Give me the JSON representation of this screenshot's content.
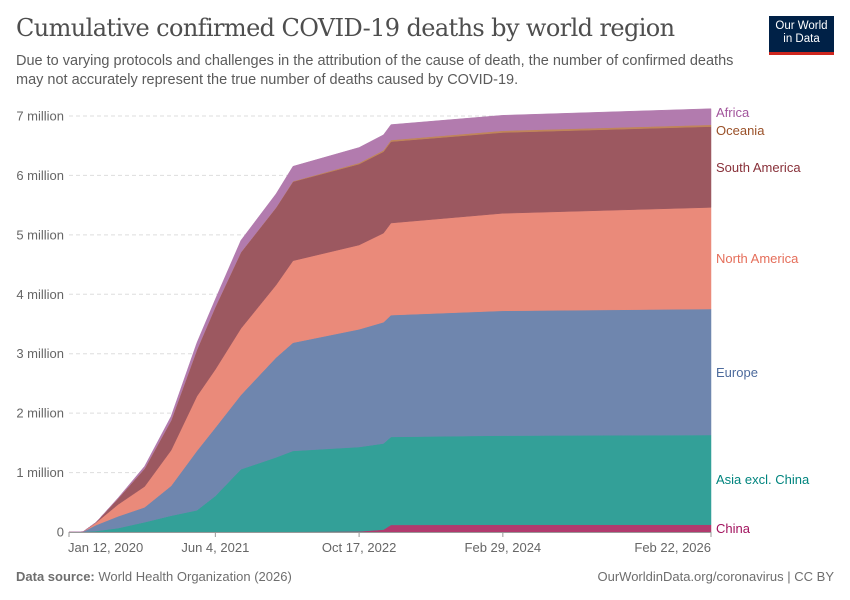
{
  "header": {
    "title": "Cumulative confirmed COVID-19 deaths by world region",
    "subtitle": "Due to varying protocols and challenges in the attribution of the cause of death, the number of confirmed deaths may not accurately represent the true number of deaths caused by COVID-19.",
    "logo_line1": "Our World",
    "logo_line2": "in Data"
  },
  "footer": {
    "source_label": "Data source:",
    "source_value": "World Health Organization (2026)",
    "link": "OurWorldinData.org/coronavirus | CC BY"
  },
  "chart_data": {
    "type": "area",
    "stacked": true,
    "title": "Cumulative confirmed COVID-19 deaths by world region",
    "xlabel": "",
    "ylabel": "",
    "ylim": [
      0,
      7000000
    ],
    "xlim": [
      "2020-01-12",
      "2026-02-22"
    ],
    "grid": "horizontal dashed",
    "legend": "right (inline labels)",
    "y_ticks": [
      {
        "value": 0,
        "label": "0"
      },
      {
        "value": 1000000,
        "label": "1 million"
      },
      {
        "value": 2000000,
        "label": "2 million"
      },
      {
        "value": 3000000,
        "label": "3 million"
      },
      {
        "value": 4000000,
        "label": "4 million"
      },
      {
        "value": 5000000,
        "label": "5 million"
      },
      {
        "value": 6000000,
        "label": "6 million"
      },
      {
        "value": 7000000,
        "label": "7 million"
      }
    ],
    "x_ticks": [
      {
        "value": "2020-01-12",
        "label": "Jan 12, 2020"
      },
      {
        "value": "2021-06-04",
        "label": "Jun 4, 2021"
      },
      {
        "value": "2022-10-17",
        "label": "Oct 17, 2022"
      },
      {
        "value": "2024-02-29",
        "label": "Feb 29, 2024"
      },
      {
        "value": "2026-02-22",
        "label": "Feb 22, 2026"
      }
    ],
    "x": [
      "2020-01-12",
      "2020-03-01",
      "2020-04-15",
      "2020-07-01",
      "2020-10-01",
      "2021-01-01",
      "2021-04-01",
      "2021-06-04",
      "2021-09-01",
      "2022-01-01",
      "2022-03-01",
      "2022-10-17",
      "2023-01-10",
      "2023-02-05",
      "2024-02-29",
      "2026-02-22"
    ],
    "series": [
      {
        "name": "China",
        "fill": "#b13a6e",
        "label_color": "#a2135e",
        "values": [
          0,
          3000,
          4000,
          5000,
          5000,
          5000,
          5000,
          5000,
          5000,
          5000,
          5000,
          10000,
          40000,
          120000,
          122000,
          122000
        ]
      },
      {
        "name": "Asia excl. China",
        "fill": "#33a098",
        "label_color": "#00847e",
        "values": [
          0,
          1000,
          12000,
          60000,
          160000,
          270000,
          360000,
          600000,
          1050000,
          1250000,
          1360000,
          1420000,
          1450000,
          1480000,
          1500000,
          1510000
        ]
      },
      {
        "name": "Europe",
        "fill": "#6f86ae",
        "label_color": "#4c6a9c",
        "values": [
          0,
          1000,
          100000,
          200000,
          250000,
          500000,
          1000000,
          1150000,
          1250000,
          1680000,
          1820000,
          1980000,
          2040000,
          2050000,
          2100000,
          2120000
        ]
      },
      {
        "name": "North America",
        "fill": "#ea8a7a",
        "label_color": "#e56e5a",
        "values": [
          0,
          0,
          40000,
          200000,
          350000,
          600000,
          920000,
          980000,
          1120000,
          1220000,
          1380000,
          1420000,
          1500000,
          1550000,
          1640000,
          1710000
        ]
      },
      {
        "name": "South America",
        "fill": "#9c5860",
        "label_color": "#883039",
        "values": [
          0,
          0,
          5000,
          100000,
          300000,
          500000,
          780000,
          1050000,
          1280000,
          1300000,
          1330000,
          1360000,
          1370000,
          1370000,
          1360000,
          1360000
        ]
      },
      {
        "name": "Oceania",
        "fill": "#c0855a",
        "label_color": "#9a5129",
        "values": [
          0,
          0,
          0,
          200,
          1000,
          1000,
          1000,
          1000,
          2000,
          4000,
          8000,
          20000,
          24000,
          26000,
          30000,
          30000
        ]
      },
      {
        "name": "Africa",
        "fill": "#b27bae",
        "label_color": "#a2559c",
        "values": [
          0,
          0,
          1000,
          10000,
          40000,
          70000,
          120000,
          130000,
          200000,
          230000,
          250000,
          260000,
          260000,
          260000,
          260000,
          270000
        ]
      }
    ]
  }
}
